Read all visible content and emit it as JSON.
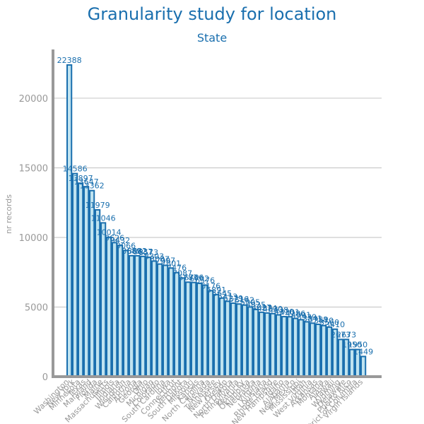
{
  "chart_data": {
    "type": "bar",
    "title": "Granularity study for location",
    "subtitle": "State",
    "xlabel": "",
    "ylabel": "nr records",
    "ylim": [
      0,
      23500
    ],
    "yticks": [
      0,
      5000,
      10000,
      15000,
      20000
    ],
    "grid": true,
    "categories": [
      "Washington",
      "New York",
      "Minnesota",
      "Texas",
      "Maryland",
      "Florida",
      "Maine",
      "Massachusetts",
      "Illinois",
      "Indiana",
      "Wisconsin",
      "California",
      "Arizona",
      "Georgia",
      "Ohio",
      "Michigan",
      "Colorado",
      "South Carolina",
      "Iowa",
      "Connecticut",
      "Vermont",
      "South Dakota",
      "Missouri",
      "Kansas",
      "North Carolina",
      "Nevada",
      "Tennessee",
      "New Jersey",
      "Oregon",
      "North Dakota",
      "Pennsylvania",
      "Kentucky",
      "Oklahoma",
      "Nebraska",
      "Virginia",
      "Louisiana",
      "Rhode Island",
      "New Hampshire",
      "Idaho",
      "Alabama",
      "New Mexico",
      "Mississippi",
      "Utah",
      "West Virginia",
      "Arkansas",
      "Montana",
      "Alaska",
      "Hawaii",
      "Wyoming",
      "Delaware",
      "Puerto Rico",
      "District of Columbia",
      "Virgin Islands"
    ],
    "values": [
      22388,
      14586,
      13897,
      13647,
      13362,
      11979,
      11046,
      10014,
      9626,
      9432,
      9066,
      8689,
      8682,
      8637,
      8573,
      8303,
      8087,
      7997,
      7801,
      7476,
      7087,
      6787,
      6766,
      6702,
      6576,
      6176,
      5891,
      5645,
      5413,
      5279,
      5216,
      5142,
      5005,
      4825,
      4627,
      4574,
      4530,
      4438,
      4310,
      4301,
      4186,
      4091,
      3939,
      3841,
      3758,
      3670,
      3560,
      3410,
      2673,
      2673,
      1950,
      1950,
      1449
    ],
    "colors": {
      "bar_fill": "#bfe3f0",
      "bar_stroke": "#1a6fae",
      "text": "#1a6fae",
      "axis": "#999999",
      "grid": "#cccccc"
    }
  }
}
